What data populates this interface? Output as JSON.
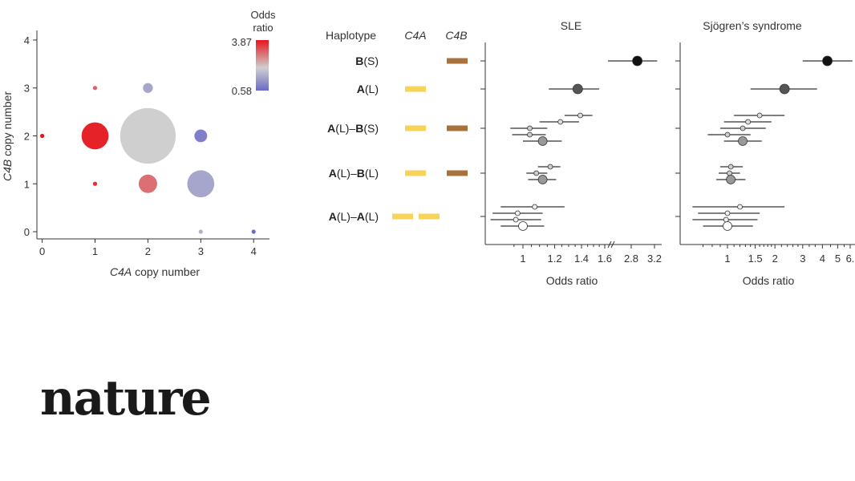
{
  "brand": {
    "logo_text": "nature"
  },
  "chart_data": [
    {
      "type": "scatter",
      "xlabel_italic": "C4A",
      "xlabel_rest": " copy number",
      "ylabel_italic": "C4B",
      "ylabel_rest": " copy number",
      "xticks": [
        "0",
        "1",
        "2",
        "3",
        "4"
      ],
      "yticks": [
        "0",
        "1",
        "2",
        "3",
        "4"
      ],
      "xlim": [
        -0.1,
        4.3
      ],
      "ylim": [
        -0.15,
        4.2
      ],
      "legend": {
        "title_line1": "Odds",
        "title_line2": "ratio",
        "max_label": "3.87",
        "min_label": "0.58",
        "placement": "top-right"
      },
      "points": [
        {
          "x": 0,
          "y": 2,
          "size": 1,
          "odds_ratio": 3.87
        },
        {
          "x": 1,
          "y": 3,
          "size": 1,
          "odds_ratio": 2.2
        },
        {
          "x": 1,
          "y": 2,
          "size": 9,
          "odds_ratio": 3.5
        },
        {
          "x": 1,
          "y": 1,
          "size": 1,
          "odds_ratio": 3.2
        },
        {
          "x": 2,
          "y": 3,
          "size": 3,
          "odds_ratio": 0.8
        },
        {
          "x": 2,
          "y": 2,
          "size": 19,
          "odds_ratio": 1.0
        },
        {
          "x": 2,
          "y": 1,
          "size": 6,
          "odds_ratio": 2.0
        },
        {
          "x": 3,
          "y": 2,
          "size": 4,
          "odds_ratio": 0.65
        },
        {
          "x": 3,
          "y": 1,
          "size": 9,
          "odds_ratio": 0.8
        },
        {
          "x": 3,
          "y": 0,
          "size": 1,
          "odds_ratio": 0.85
        },
        {
          "x": 4,
          "y": 0,
          "size": 1,
          "odds_ratio": 0.58
        }
      ]
    },
    {
      "type": "forest",
      "header_haplotype": "Haplotype",
      "header_c4a": "C4A",
      "header_c4b": "C4B",
      "colors": {
        "c4a": "#f7d35a",
        "c4b": "#a8723a"
      },
      "haplotypes": [
        {
          "label_bold1": "B",
          "label_rest1": "(S)",
          "label_bold2": "",
          "label_rest2": "",
          "c4a_bars": 0,
          "c4b_bars": 1
        },
        {
          "label_bold1": "A",
          "label_rest1": "(L)",
          "label_bold2": "",
          "label_rest2": "",
          "c4a_bars": 1,
          "c4b_bars": 0
        },
        {
          "label_bold1": "A",
          "label_rest1": "(L)–",
          "label_bold2": "B",
          "label_rest2": "(S)",
          "c4a_bars": 1,
          "c4b_bars": 1
        },
        {
          "label_bold1": "A",
          "label_rest1": "(L)–",
          "label_bold2": "B",
          "label_rest2": "(L)",
          "c4a_bars": 1,
          "c4b_bars": 1
        },
        {
          "label_bold1": "A",
          "label_rest1": "(L)–",
          "label_bold2": "A",
          "label_rest2": "(L)",
          "c4a_bars": 2,
          "c4b_bars": 0
        }
      ],
      "panels": [
        {
          "title": "SLE",
          "xlabel": "Odds ratio",
          "xticks": [
            "1",
            "1.2",
            "1.4",
            "1.6",
            "2.8",
            "3.2"
          ],
          "estimates": [
            {
              "group": 0,
              "or": 2.9,
              "lo": 2.45,
              "hi": 3.25,
              "size": 5,
              "shade": "#111111"
            },
            {
              "group": 1,
              "or": 1.37,
              "lo": 1.16,
              "hi": 1.55,
              "size": 5,
              "shade": "#555555"
            },
            {
              "group": 2,
              "or": 1.39,
              "lo": 1.27,
              "hi": 1.49,
              "size": 2,
              "shade": "#dddddd"
            },
            {
              "group": 2,
              "or": 1.24,
              "lo": 1.1,
              "hi": 1.38,
              "size": 2,
              "shade": "#dddddd"
            },
            {
              "group": 2,
              "or": 1.04,
              "lo": 0.93,
              "hi": 1.15,
              "size": 2,
              "shade": "#cccccc"
            },
            {
              "group": 2,
              "or": 1.04,
              "lo": 0.94,
              "hi": 1.14,
              "size": 2,
              "shade": "#cccccc"
            },
            {
              "group": 2,
              "or": 1.12,
              "lo": 1.0,
              "hi": 1.25,
              "size": 4,
              "shade": "#999999"
            },
            {
              "group": 3,
              "or": 1.17,
              "lo": 1.09,
              "hi": 1.24,
              "size": 2,
              "shade": "#cccccc"
            },
            {
              "group": 3,
              "or": 1.08,
              "lo": 1.02,
              "hi": 1.15,
              "size": 2,
              "shade": "#cccccc"
            },
            {
              "group": 3,
              "or": 1.12,
              "lo": 1.03,
              "hi": 1.21,
              "size": 4,
              "shade": "#999999"
            },
            {
              "group": 4,
              "or": 1.07,
              "lo": 0.88,
              "hi": 1.27,
              "size": 2,
              "shade": "#eeeeee"
            },
            {
              "group": 4,
              "or": 0.97,
              "lo": 0.84,
              "hi": 1.12,
              "size": 2,
              "shade": "#eeeeee"
            },
            {
              "group": 4,
              "or": 0.96,
              "lo": 0.83,
              "hi": 1.11,
              "size": 2,
              "shade": "#eeeeee"
            },
            {
              "group": 4,
              "or": 1.0,
              "lo": 0.88,
              "hi": 1.13,
              "size": 4,
              "shade": "#ffffff"
            }
          ]
        },
        {
          "title": "Sjögren’s syndrome",
          "xlabel": "Odds ratio",
          "xticks": [
            "1",
            "1.5",
            "2",
            "3",
            "4",
            "5",
            "6."
          ],
          "estimates": [
            {
              "group": 0,
              "or": 4.3,
              "lo": 3.0,
              "hi": 6.2,
              "size": 5,
              "shade": "#111111"
            },
            {
              "group": 1,
              "or": 2.3,
              "lo": 1.4,
              "hi": 3.7,
              "size": 5,
              "shade": "#555555"
            },
            {
              "group": 2,
              "or": 1.6,
              "lo": 1.1,
              "hi": 2.3,
              "size": 2,
              "shade": "#dddddd"
            },
            {
              "group": 2,
              "or": 1.35,
              "lo": 0.95,
              "hi": 1.9,
              "size": 2,
              "shade": "#dddddd"
            },
            {
              "group": 2,
              "or": 1.25,
              "lo": 0.9,
              "hi": 1.75,
              "size": 2,
              "shade": "#cccccc"
            },
            {
              "group": 2,
              "or": 1.0,
              "lo": 0.75,
              "hi": 1.4,
              "size": 2,
              "shade": "#cccccc"
            },
            {
              "group": 2,
              "or": 1.25,
              "lo": 0.95,
              "hi": 1.65,
              "size": 4,
              "shade": "#999999"
            },
            {
              "group": 3,
              "or": 1.05,
              "lo": 0.9,
              "hi": 1.25,
              "size": 2,
              "shade": "#cccccc"
            },
            {
              "group": 3,
              "or": 1.03,
              "lo": 0.88,
              "hi": 1.2,
              "size": 2,
              "shade": "#cccccc"
            },
            {
              "group": 3,
              "or": 1.05,
              "lo": 0.85,
              "hi": 1.3,
              "size": 4,
              "shade": "#999999"
            },
            {
              "group": 4,
              "or": 1.2,
              "lo": 0.6,
              "hi": 2.3,
              "size": 2,
              "shade": "#eeeeee"
            },
            {
              "group": 4,
              "or": 1.0,
              "lo": 0.65,
              "hi": 1.6,
              "size": 2,
              "shade": "#eeeeee"
            },
            {
              "group": 4,
              "or": 0.98,
              "lo": 0.6,
              "hi": 1.55,
              "size": 2,
              "shade": "#eeeeee"
            },
            {
              "group": 4,
              "or": 1.0,
              "lo": 0.7,
              "hi": 1.45,
              "size": 4,
              "shade": "#ffffff"
            }
          ]
        }
      ]
    }
  ]
}
